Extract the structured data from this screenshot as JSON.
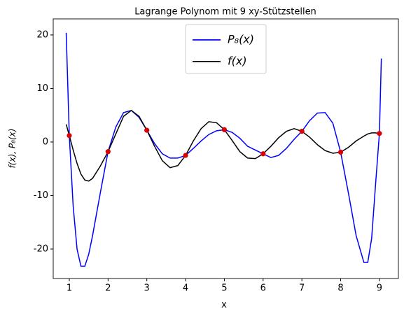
{
  "chart_data": {
    "type": "line",
    "title": "Lagrange Polynom mit 9 xy-Stützstellen",
    "x_label": "x",
    "y_label": "f(x), P₈(x)",
    "x": [
      0.92,
      1.0,
      1.1,
      1.2,
      1.3,
      1.4,
      1.5,
      1.6,
      1.8,
      2.0,
      2.2,
      2.4,
      2.6,
      2.8,
      3.0,
      3.2,
      3.4,
      3.6,
      3.8,
      4.0,
      4.2,
      4.4,
      4.6,
      4.8,
      5.0,
      5.2,
      5.4,
      5.6,
      5.8,
      6.0,
      6.2,
      6.4,
      6.6,
      6.8,
      7.0,
      7.2,
      7.4,
      7.6,
      7.8,
      8.0,
      8.2,
      8.4,
      8.6,
      8.7,
      8.8,
      8.9,
      9.0,
      9.05
    ],
    "series": [
      {
        "name": "P₈(x)",
        "color": "#0000ff",
        "values": [
          20.4,
          1.2,
          -12,
          -20,
          -23.2,
          -23.2,
          -21,
          -17.5,
          -9.5,
          -1.8,
          2.8,
          5.5,
          5.9,
          4.6,
          2.2,
          -0.3,
          -2.2,
          -3.0,
          -3.0,
          -2.5,
          -1.2,
          0.2,
          1.4,
          2.1,
          2.3,
          1.8,
          0.7,
          -0.8,
          -1.5,
          -2.2,
          -2.9,
          -2.5,
          -1.2,
          0.5,
          2.0,
          4.0,
          5.4,
          5.5,
          3.5,
          -1.9,
          -9.5,
          -17.5,
          -22.5,
          -22.5,
          -18,
          -8,
          1.6,
          15.6
        ]
      },
      {
        "name": "f(x)",
        "color": "#000000",
        "values": [
          3.3,
          1.2,
          -1.5,
          -4,
          -6,
          -7.1,
          -7.3,
          -6.8,
          -4.5,
          -1.8,
          1.5,
          4.8,
          5.9,
          4.8,
          2.2,
          -0.8,
          -3.5,
          -4.8,
          -4.4,
          -2.5,
          0.2,
          2.5,
          3.8,
          3.6,
          2.3,
          0.3,
          -1.8,
          -3.0,
          -3.1,
          -2.2,
          -0.8,
          0.8,
          2.0,
          2.5,
          2.0,
          0.9,
          -0.5,
          -1.6,
          -2.1,
          -1.9,
          -1.0,
          0.2,
          1.1,
          1.5,
          1.7,
          1.7,
          1.6,
          1.5
        ]
      }
    ],
    "points": {
      "color": "#dd0000",
      "x": [
        1,
        2,
        3,
        4,
        5,
        6,
        7,
        8,
        9
      ],
      "values": [
        1.2,
        -1.8,
        2.2,
        -2.5,
        2.3,
        -2.2,
        2.0,
        -1.9,
        1.6
      ]
    },
    "xlim": [
      0.585,
      9.49
    ],
    "ylim": [
      -25.5,
      23.0
    ],
    "xticks": [
      1,
      2,
      3,
      4,
      5,
      6,
      7,
      8,
      9
    ],
    "yticks": [
      -20,
      -10,
      0,
      10,
      20
    ],
    "grid": false,
    "legend": "upper center"
  }
}
